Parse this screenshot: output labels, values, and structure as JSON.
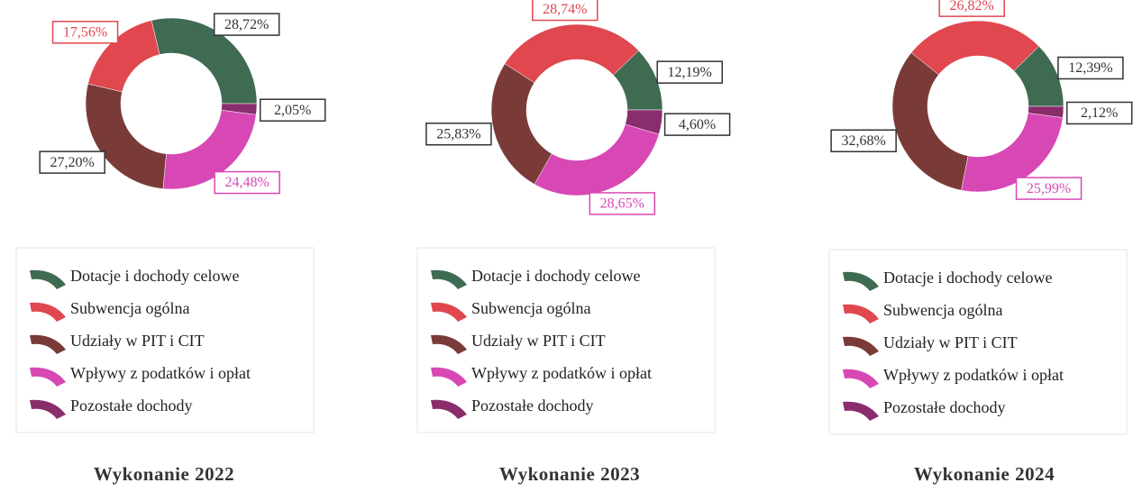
{
  "chart_data": [
    {
      "type": "pie",
      "title": "Wykonanie 2022",
      "categories": [
        "Dotacje i dochody celowe",
        "Subwencja ogólna",
        "Udziały w PIT i CIT",
        "Wpływy z podatków i opłat",
        "Pozostałe dochody"
      ],
      "values": [
        28.72,
        17.56,
        27.2,
        24.48,
        2.05
      ],
      "value_labels": [
        "28,72%",
        "17,56%",
        "27,20%",
        "24,48%",
        "2,05%"
      ],
      "colors": [
        "#3f6b52",
        "#e0474f",
        "#7a3b38",
        "#d748b4",
        "#8a2d6c"
      ]
    },
    {
      "type": "pie",
      "title": "Wykonanie 2023",
      "categories": [
        "Dotacje i dochody celowe",
        "Subwencja ogólna",
        "Udziały w PIT i CIT",
        "Wpływy z podatków i opłat",
        "Pozostałe dochody"
      ],
      "values": [
        12.19,
        28.74,
        25.83,
        28.65,
        4.6
      ],
      "value_labels": [
        "12,19%",
        "28,74%",
        "25,83%",
        "28,65%",
        "4,60%"
      ],
      "colors": [
        "#3f6b52",
        "#e0474f",
        "#7a3b38",
        "#d748b4",
        "#8a2d6c"
      ]
    },
    {
      "type": "pie",
      "title": "Wykonanie 2024",
      "categories": [
        "Dotacje i dochody celowe",
        "Subwencja ogólna",
        "Udziały w PIT i CIT",
        "Wpływy z podatków i opłat",
        "Pozostałe dochody"
      ],
      "values": [
        12.39,
        26.82,
        32.68,
        25.99,
        2.12
      ],
      "value_labels": [
        "12,39%",
        "26,82%",
        "32,68%",
        "25,99%",
        "2,12%"
      ],
      "colors": [
        "#3f6b52",
        "#e0474f",
        "#7a3b38",
        "#d748b4",
        "#8a2d6c"
      ]
    }
  ]
}
